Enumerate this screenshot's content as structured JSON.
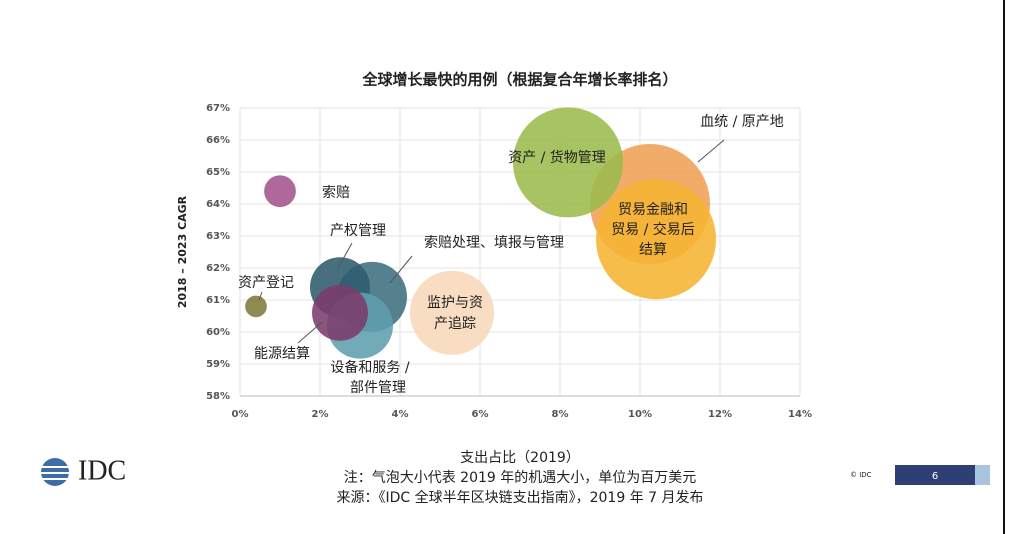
{
  "chart_data": {
    "type": "scatter",
    "title": "全球增长最快的用例（根据复合年增长率排名）",
    "y_label": "2018 – 2023 CAGR",
    "x_label": "支出占比（2019）",
    "notes": [
      "注：气泡大小代表 2019 年的机遇大小，单位为百万美元",
      "来源：《IDC 全球半年区块链支出指南》，2019 年 7 月发布"
    ],
    "logo": "IDC",
    "copyright": "© IDC",
    "page_number": "6",
    "xlim": [
      0,
      14
    ],
    "ylim": [
      58,
      67
    ],
    "xticks": [
      {
        "value": 0,
        "label": "0%"
      },
      {
        "value": 2,
        "label": "2%"
      },
      {
        "value": 4,
        "label": "4%"
      },
      {
        "value": 6,
        "label": "6%"
      },
      {
        "value": 8,
        "label": "8%"
      },
      {
        "value": 10,
        "label": "10%"
      },
      {
        "value": 12,
        "label": "12%"
      },
      {
        "value": 14,
        "label": "14%"
      }
    ],
    "yticks": [
      {
        "value": 58,
        "label": "58%"
      },
      {
        "value": 59,
        "label": "59%"
      },
      {
        "value": 60,
        "label": "60%"
      },
      {
        "value": 61,
        "label": "61%"
      },
      {
        "value": 62,
        "label": "62%"
      },
      {
        "value": 63,
        "label": "63%"
      },
      {
        "value": 64,
        "label": "64%"
      },
      {
        "value": 65,
        "label": "65%"
      },
      {
        "value": 66,
        "label": "66%"
      },
      {
        "value": 67,
        "label": "67%"
      }
    ],
    "grid": true,
    "series": [
      {
        "name": [
          "索赔"
        ],
        "color": "#a4538c",
        "x": [
          1.0
        ],
        "values": [
          64.4
        ],
        "sizes": [
          28
        ]
      },
      {
        "name": [
          "资产登记"
        ],
        "color": "#7d7b3c",
        "x": [
          0.4
        ],
        "values": [
          60.8
        ],
        "sizes": [
          13
        ]
      },
      {
        "name": [
          "产权管理"
        ],
        "color": "#2f5b6e",
        "x": [
          2.5
        ],
        "values": [
          61.4
        ],
        "sizes": [
          100
        ]
      },
      {
        "name": [
          "索赔处理、填报与管理"
        ],
        "color": "#3d6f80",
        "x": [
          3.3
        ],
        "values": [
          61.1
        ],
        "sizes": [
          136
        ]
      },
      {
        "name": [
          "能源结算"
        ],
        "color": "#7b3b6b",
        "x": [
          2.5
        ],
        "values": [
          60.6
        ],
        "sizes": [
          87
        ]
      },
      {
        "name": [
          "设备和服务 /",
          "部件管理"
        ],
        "color": "#5f9eae",
        "x": [
          3.0
        ],
        "values": [
          60.2
        ],
        "sizes": [
          121
        ]
      },
      {
        "name": [
          "监护与资",
          "产追踪"
        ],
        "color": "#f7d8ba",
        "x": [
          5.3
        ],
        "values": [
          60.6
        ],
        "sizes": [
          196
        ]
      },
      {
        "name": [
          "资产 / 货物管理"
        ],
        "color": "#9bbb4c",
        "x": [
          8.2
        ],
        "values": [
          65.3
        ],
        "sizes": [
          336
        ]
      },
      {
        "name": [
          "血统 / 原产地"
        ],
        "color": "#f0a055",
        "x": [
          10.25
        ],
        "values": [
          64.0
        ],
        "sizes": [
          400
        ]
      },
      {
        "name": [
          "贸易金融和",
          "贸易 / 交易后",
          "结算"
        ],
        "color": "#f6b432",
        "x": [
          10.4
        ],
        "values": [
          62.9
        ],
        "sizes": [
          400
        ]
      }
    ]
  }
}
